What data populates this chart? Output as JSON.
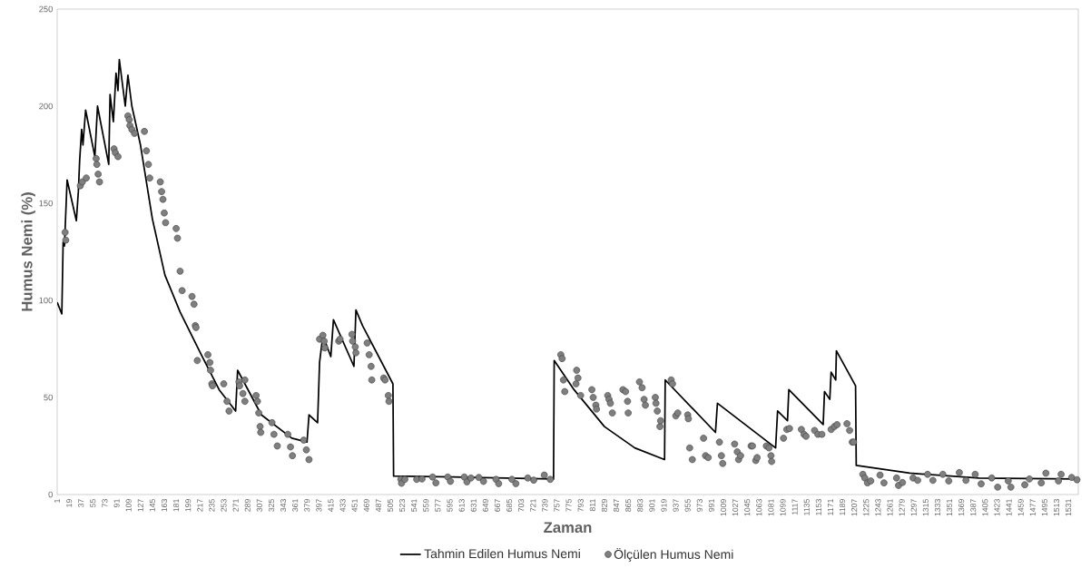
{
  "chart_data": {
    "type": "line",
    "xlabel": "Zaman",
    "ylabel": "Humus Nemi (%)",
    "xlim": [
      1,
      1546
    ],
    "ylim": [
      0,
      250
    ],
    "xticks": [
      1,
      19,
      37,
      55,
      73,
      91,
      109,
      127,
      145,
      163,
      181,
      199,
      217,
      235,
      253,
      271,
      289,
      307,
      325,
      343,
      361,
      379,
      397,
      415,
      433,
      451,
      469,
      487,
      505,
      523,
      541,
      559,
      577,
      595,
      613,
      631,
      649,
      667,
      685,
      703,
      721,
      739,
      757,
      775,
      793,
      811,
      829,
      847,
      865,
      883,
      901,
      919,
      937,
      955,
      973,
      991,
      1009,
      1027,
      1045,
      1063,
      1081,
      1099,
      1117,
      1135,
      1153,
      1171,
      1189,
      1207,
      1225,
      1243,
      1261,
      1279,
      1297,
      1315,
      1333,
      1351,
      1369,
      1387,
      1405,
      1423,
      1441,
      1459,
      1477,
      1495,
      1513,
      1531
    ],
    "yticks": [
      0,
      50,
      100,
      150,
      200,
      250
    ],
    "grid": false,
    "legend": "bottom",
    "series": [
      {
        "name": "Tahmin Edilen Humus Nemi",
        "color": "#000000",
        "x": [
          1,
          8,
          10,
          12,
          16,
          30,
          33,
          35,
          38,
          40,
          44,
          58,
          62,
          79,
          81,
          86,
          90,
          93,
          95,
          104,
          108,
          114,
          127,
          145,
          164,
          187,
          219,
          246,
          271,
          274,
          310,
          356,
          379,
          382,
          395,
          398,
          403,
          415,
          419,
          450,
          453,
          463,
          509,
          510,
          600,
          752,
          753,
          783,
          829,
          875,
          920,
          921,
          997,
          1000,
          1088,
          1091,
          1106,
          1108,
          1160,
          1162,
          1170,
          1172,
          1179,
          1180,
          1209,
          1210,
          1291,
          1396,
          1544
        ],
        "values": [
          99,
          93,
          130,
          128,
          162,
          141,
          156,
          172,
          188,
          180,
          198,
          174,
          200,
          170,
          206,
          192,
          217,
          208,
          224,
          200,
          216,
          200,
          180,
          142,
          113,
          94,
          72,
          54,
          43,
          64,
          41,
          29,
          27,
          41,
          37,
          68,
          82,
          71,
          90,
          66,
          95,
          87,
          57,
          9.5,
          9,
          8,
          69,
          54,
          35,
          24,
          18,
          59,
          32,
          47,
          24,
          43,
          38,
          54,
          36,
          53,
          49,
          63,
          59,
          74,
          56,
          15,
          11,
          8.5,
          8
        ]
      },
      {
        "name": "Ölçülen Humus Nemi",
        "type": "scatter",
        "color": "#7f7f7f",
        "marker": "circle",
        "x": [
          13,
          14,
          36,
          39,
          45,
          60,
          61,
          63,
          65,
          87,
          89,
          93,
          108,
          110,
          111,
          114,
          118,
          133,
          136,
          139,
          141,
          157,
          159,
          161,
          163,
          165,
          181,
          183,
          187,
          190,
          205,
          208,
          210,
          211,
          213,
          229,
          232,
          233,
          235,
          236,
          253,
          258,
          261,
          276,
          277,
          282,
          285,
          285,
          302,
          304,
          306,
          308,
          309,
          326,
          329,
          334,
          350,
          354,
          357,
          374,
          378,
          382,
          398,
          403,
          405,
          406,
          427,
          429,
          447,
          448,
          452,
          453,
          470,
          473,
          476,
          477,
          495,
          497,
          502,
          503,
          521,
          522,
          527,
          545,
          553,
          569,
          574,
          592,
          596,
          617,
          621,
          627,
          639,
          646,
          665,
          669,
          689,
          695,
          713,
          722,
          738,
          747,
          763,
          765,
          767,
          769,
          786,
          787,
          789,
          793,
          810,
          812,
          816,
          817,
          834,
          836,
          838,
          841,
          857,
          861,
          864,
          865,
          882,
          886,
          889,
          891,
          906,
          907,
          909,
          913,
          914,
          930,
          932,
          937,
          940,
          955,
          956,
          958,
          962,
          979,
          982,
          986,
          1003,
          1006,
          1008,
          1026,
          1030,
          1032,
          1035,
          1051,
          1053,
          1058,
          1060,
          1074,
          1078,
          1081,
          1082,
          1100,
          1105,
          1109,
          1127,
          1131,
          1134,
          1147,
          1152,
          1158,
          1172,
          1177,
          1181,
          1196,
          1200,
          1204,
          1206,
          1220,
          1223,
          1227,
          1232,
          1246,
          1252,
          1271,
          1274,
          1280,
          1296,
          1303,
          1318,
          1326,
          1341,
          1350,
          1366,
          1376,
          1390,
          1399,
          1415,
          1424,
          1440,
          1444,
          1465,
          1472,
          1490,
          1497,
          1516,
          1520,
          1536,
          1544
        ],
        "values": [
          135,
          131,
          159,
          161,
          163,
          173,
          170,
          165,
          161,
          178,
          176,
          174,
          195,
          193,
          190,
          188,
          186,
          187,
          177,
          170,
          163,
          161,
          156,
          152,
          145,
          140,
          137,
          132,
          115,
          105,
          102,
          98,
          87,
          86,
          69,
          72,
          68,
          64,
          57,
          56,
          57,
          48,
          43,
          58,
          56,
          52,
          48,
          59,
          51,
          48,
          42,
          35,
          32,
          37,
          31,
          25,
          31,
          24.5,
          20,
          28,
          23,
          18,
          80,
          82,
          79,
          75.5,
          79,
          80,
          82.5,
          79,
          76,
          73,
          78,
          72,
          66,
          59,
          60,
          59,
          51,
          48,
          7.8,
          5.8,
          7.8,
          7.8,
          8,
          9,
          6,
          9,
          6.8,
          9,
          6.5,
          8.5,
          8.8,
          6.8,
          7.8,
          5.6,
          7.8,
          5.6,
          8.5,
          7.4,
          10,
          7.8,
          72,
          70,
          59,
          53,
          57,
          64,
          60,
          51,
          54,
          50,
          46,
          44,
          51,
          49,
          47,
          42,
          54,
          53,
          48,
          42,
          58,
          55,
          49,
          46,
          50,
          47,
          43,
          35,
          38,
          59,
          57,
          40.5,
          42,
          41,
          39,
          24,
          18,
          29,
          20,
          19,
          27,
          20,
          16,
          26,
          22,
          18,
          20,
          25,
          25,
          17.5,
          19,
          25,
          24,
          20,
          17,
          29,
          33.5,
          34,
          33.5,
          31,
          30,
          33,
          31,
          31,
          33.5,
          35,
          36,
          36.5,
          33,
          27,
          27,
          10.4,
          8.5,
          6,
          7,
          10,
          6,
          8.5,
          4.7,
          6.2,
          8.5,
          7.3,
          10.4,
          7.3,
          10.4,
          7,
          11.3,
          7.3,
          10.4,
          5.5,
          8.5,
          3.8,
          7,
          3.8,
          5,
          8,
          6,
          11,
          7,
          10.4,
          8.8,
          7.6
        ]
      }
    ]
  }
}
